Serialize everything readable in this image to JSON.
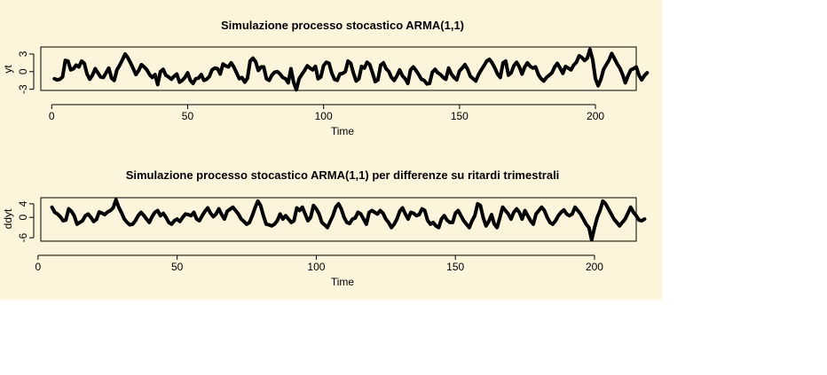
{
  "colors": {
    "background": "#FCF5DC",
    "line": "#000000"
  },
  "chart_data": [
    {
      "type": "line",
      "title": "Simulazione processo stocastico  ARMA(1,1)",
      "xlabel": "Time",
      "ylabel": "yt",
      "xlim": [
        -4,
        215
      ],
      "ylim": [
        -3.2,
        4.2
      ],
      "xticks": [
        "0",
        "50",
        "100",
        "150",
        "200"
      ],
      "yticks": [
        "-3",
        "0",
        "3"
      ],
      "x_start": 1,
      "values": [
        -1.2,
        -1.4,
        -1.3,
        -0.9,
        1.9,
        1.8,
        0.3,
        0.5,
        1.1,
        0.8,
        1.8,
        1.4,
        -0.4,
        -1.3,
        -0.6,
        0.5,
        -0.2,
        -0.9,
        -1.0,
        -0.2,
        0.6,
        -1.1,
        -1.5,
        0.3,
        1.1,
        2.0,
        3.0,
        2.4,
        1.5,
        0.5,
        -0.5,
        0.2,
        1.2,
        0.8,
        0.3,
        -0.5,
        -1.0,
        -0.5,
        -2.2,
        0.0,
        0.4,
        -0.6,
        -0.9,
        -1.3,
        -0.8,
        -0.4,
        -1.8,
        -1.5,
        -1.0,
        -0.2,
        -1.5,
        -2.0,
        -1.2,
        -1.1,
        -0.5,
        -1.5,
        -1.3,
        -0.8,
        0.3,
        0.6,
        0.5,
        -0.4,
        1.3,
        1.0,
        0.8,
        1.5,
        0.8,
        -0.2,
        -1.2,
        -1.0,
        -1.8,
        -1.1,
        1.8,
        2.3,
        1.7,
        0.2,
        0.8,
        0.8,
        -1.2,
        -1.5,
        -0.6,
        -0.1,
        0.0,
        -0.4,
        -1.0,
        -1.2,
        -1.9,
        0.5,
        -1.8,
        -3.1,
        -1.2,
        -0.5,
        0.2,
        1.0,
        0.6,
        0.3,
        0.9,
        -1.2,
        -0.9,
        1.0,
        1.6,
        1.4,
        -0.2,
        -1.3,
        -1.5,
        -0.4,
        -0.3,
        0.0,
        1.8,
        1.4,
        -0.3,
        -1.6,
        -1.2,
        0.9,
        0.6,
        1.6,
        1.2,
        -0.2,
        -1.7,
        -1.4,
        1.1,
        1.5,
        0.5,
        0.0,
        -1.0,
        -1.5,
        -0.7,
        0.3,
        -0.7,
        -1.2,
        -2.0,
        0.3,
        0.8,
        0.2,
        -0.5,
        -1.3,
        -1.5,
        -2.1,
        -2.0,
        -0.1,
        0.4,
        -0.2,
        -0.5,
        -1.0,
        -1.3,
        0.6,
        -0.4,
        -1.0,
        -1.4,
        0.1,
        0.6,
        1.2,
        0.4,
        -0.8,
        -1.2,
        -1.6,
        -0.5,
        0.3,
        1.0,
        1.8,
        2.1,
        1.5,
        0.6,
        -0.4,
        -1.0,
        1.5,
        1.8,
        -0.6,
        -0.2,
        1.0,
        1.6,
        0.8,
        -0.4,
        0.8,
        1.5,
        0.9,
        0.6,
        0.8,
        -0.5,
        -1.2,
        -1.6,
        -1.0,
        -0.6,
        -0.2,
        0.8,
        1.4,
        0.6,
        -0.3,
        0.9,
        0.6,
        0.3,
        1.1,
        1.6,
        2.7,
        2.4,
        1.9,
        2.3,
        3.8,
        2.0,
        -1.2,
        -2.4,
        -1.3,
        0.4,
        1.2,
        2.0,
        3.1,
        2.2,
        1.3,
        0.6,
        -0.5,
        -1.9,
        -0.7,
        0.3,
        0.5,
        0.8,
        -0.6,
        -1.4,
        -0.7,
        -0.2
      ]
    },
    {
      "type": "line",
      "title": "Simulazione processo stocastico  ARMA(1,1) per differenze su ritardi trimestrali",
      "xlabel": "Time",
      "ylabel": "ddyt",
      "xlim": [
        1,
        215
      ],
      "ylim": [
        -7,
        5.8
      ],
      "xticks": [
        "0",
        "50",
        "100",
        "150",
        "200"
      ],
      "yticks": [
        "-6",
        "0",
        "4"
      ],
      "x_start": 5,
      "values": [
        3.0,
        1.5,
        1.0,
        0.2,
        -1.0,
        -0.8,
        2.5,
        1.8,
        0.5,
        -2.0,
        -1.5,
        -1.0,
        0.5,
        1.0,
        0.0,
        -1.2,
        -0.6,
        1.6,
        1.2,
        0.8,
        1.6,
        2.0,
        2.8,
        5.2,
        3.0,
        1.4,
        -0.5,
        -1.5,
        -2.2,
        -2.0,
        -1.0,
        0.5,
        1.5,
        0.6,
        -0.5,
        -1.5,
        0.2,
        1.5,
        2.0,
        0.5,
        1.2,
        0.0,
        -1.5,
        -2.0,
        -1.0,
        -0.5,
        -1.2,
        0.0,
        1.0,
        0.8,
        0.5,
        1.5,
        -0.5,
        -1.0,
        0.5,
        1.8,
        2.8,
        1.2,
        0.2,
        1.0,
        2.5,
        0.8,
        -0.5,
        1.8,
        2.4,
        3.0,
        2.0,
        1.0,
        -0.5,
        -1.2,
        -2.0,
        -1.5,
        0.5,
        2.8,
        4.8,
        3.5,
        0.5,
        -2.0,
        -2.2,
        -2.5,
        -2.0,
        -1.0,
        1.0,
        -0.5,
        0.5,
        -0.5,
        -1.5,
        -1.0,
        2.8,
        2.0,
        3.0,
        1.0,
        -1.0,
        0.0,
        3.5,
        2.5,
        1.0,
        -1.5,
        -2.2,
        -3.0,
        -1.2,
        0.5,
        3.0,
        4.0,
        2.5,
        0.0,
        -1.5,
        -1.8,
        -0.5,
        -0.2,
        1.5,
        1.0,
        -0.5,
        -2.0,
        1.5,
        2.0,
        1.5,
        1.0,
        2.0,
        1.2,
        -0.5,
        -1.5,
        -3.0,
        -2.0,
        -0.5,
        1.8,
        2.8,
        1.0,
        -0.5,
        1.5,
        1.2,
        0.5,
        0.8,
        2.5,
        2.0,
        -0.8,
        -2.0,
        -1.5,
        -2.5,
        -3.0,
        -0.5,
        0.5,
        -0.8,
        -1.5,
        -1.5,
        1.2,
        2.0,
        0.5,
        -1.0,
        -2.0,
        -3.0,
        -1.0,
        0.5,
        4.0,
        3.5,
        0.0,
        -2.5,
        -1.2,
        0.8,
        -2.0,
        -3.0,
        0.0,
        3.0,
        2.0,
        1.0,
        -0.5,
        1.5,
        2.5,
        1.5,
        -0.5,
        2.0,
        0.5,
        -1.0,
        -2.0,
        1.0,
        2.0,
        3.0,
        2.0,
        0.0,
        -1.5,
        -2.0,
        -1.0,
        0.5,
        1.5,
        2.2,
        1.0,
        0.5,
        1.0,
        3.0,
        2.0,
        1.0,
        -0.5,
        -2.0,
        -3.0,
        -6.6,
        -3.0,
        0.0,
        2.0,
        4.8,
        4.0,
        2.5,
        1.0,
        -0.5,
        -1.5,
        -2.5,
        -1.5,
        -0.5,
        1.2,
        3.0,
        1.5,
        0.5,
        -0.8,
        -1.0,
        -0.5
      ]
    }
  ]
}
